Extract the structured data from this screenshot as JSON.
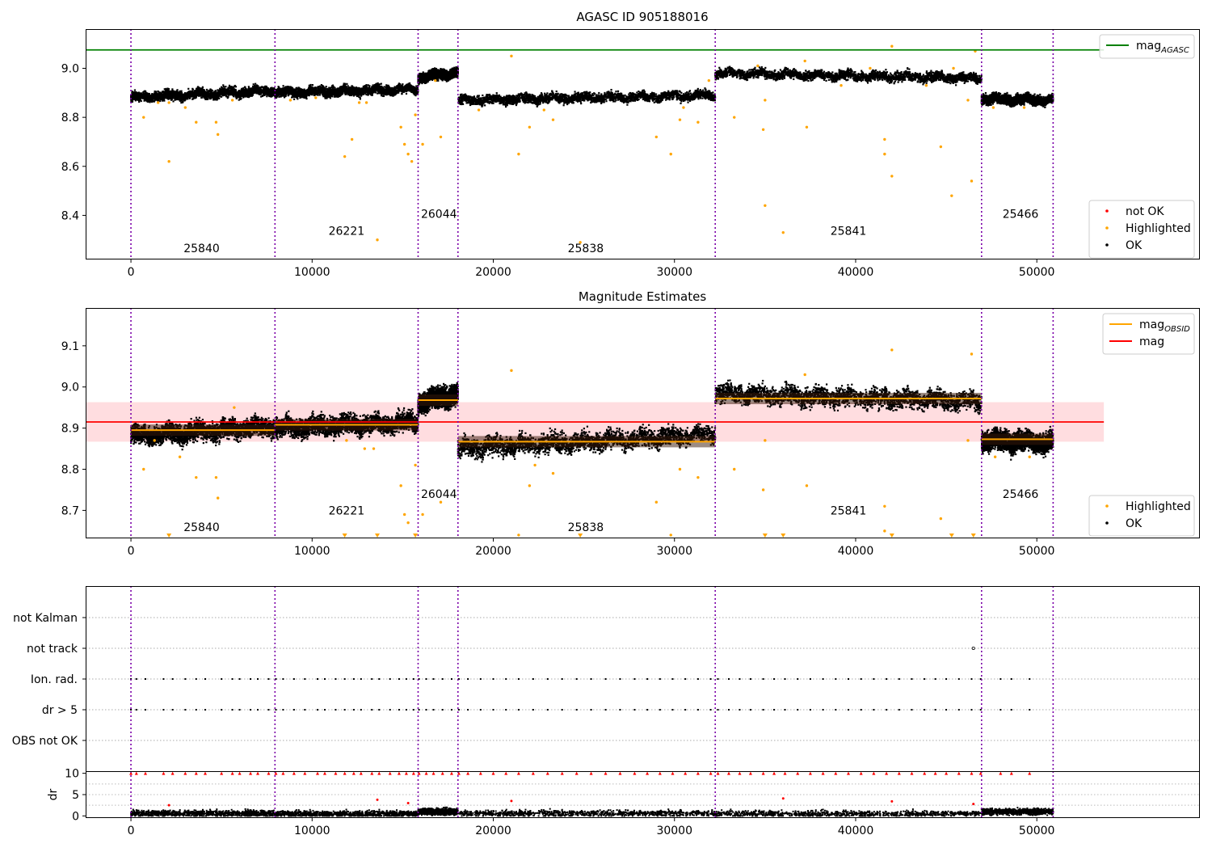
{
  "chart_data": [
    {
      "type": "scatter",
      "title": "AGASC ID 905188016",
      "xlim": [
        -2500,
        59000
      ],
      "ylim": [
        8.22,
        9.16
      ],
      "xticks": [
        0,
        10000,
        20000,
        30000,
        40000,
        50000
      ],
      "yticks": [
        8.4,
        8.6,
        8.8,
        9.0
      ],
      "ytick_labels": [
        "8.4",
        "8.6",
        "8.8",
        "9.0"
      ],
      "obsid_boundaries": [
        0,
        7950,
        15850,
        18050,
        32250,
        46950,
        50900
      ],
      "obsid_labels": [
        {
          "text": "25840",
          "x": 3900,
          "y": 8.25
        },
        {
          "text": "26221",
          "x": 11900,
          "y": 8.32
        },
        {
          "text": "26044",
          "x": 17000,
          "y": 8.39
        },
        {
          "text": "25838",
          "x": 25100,
          "y": 8.25
        },
        {
          "text": "25841",
          "x": 39600,
          "y": 8.32
        },
        {
          "text": "25466",
          "x": 49100,
          "y": 8.39
        }
      ],
      "reference_line": {
        "name": "mag_AGASC",
        "y": 9.075,
        "x_end": 53700,
        "color": "#008000"
      },
      "segments": [
        {
          "x0": 0,
          "x1": 7950,
          "m0": 8.88,
          "m1": 8.91
        },
        {
          "x0": 7950,
          "x1": 15850,
          "m0": 8.9,
          "m1": 8.915
        },
        {
          "x0": 15850,
          "x1": 18050,
          "m0": 8.96,
          "m1": 8.985
        },
        {
          "x0": 18050,
          "x1": 32250,
          "m0": 8.87,
          "m1": 8.89
        },
        {
          "x0": 32250,
          "x1": 46950,
          "m0": 8.98,
          "m1": 8.96
        },
        {
          "x0": 46950,
          "x1": 50900,
          "m0": 8.875,
          "m1": 8.87
        }
      ],
      "highlighted": [
        [
          2100,
          8.62
        ],
        [
          11800,
          8.64
        ],
        [
          12200,
          8.71
        ],
        [
          13600,
          8.3
        ],
        [
          14900,
          8.76
        ],
        [
          15100,
          8.69
        ],
        [
          15300,
          8.65
        ],
        [
          15500,
          8.62
        ],
        [
          15700,
          8.81
        ],
        [
          16100,
          8.69
        ],
        [
          17100,
          8.72
        ],
        [
          21000,
          9.05
        ],
        [
          21400,
          8.65
        ],
        [
          22000,
          8.76
        ],
        [
          23300,
          8.79
        ],
        [
          24800,
          8.29
        ],
        [
          29000,
          8.72
        ],
        [
          29800,
          8.65
        ],
        [
          30300,
          8.79
        ],
        [
          31300,
          8.78
        ],
        [
          33300,
          8.8
        ],
        [
          34900,
          8.75
        ],
        [
          35000,
          8.87
        ],
        [
          35000,
          8.44
        ],
        [
          36000,
          8.33
        ],
        [
          37300,
          8.76
        ],
        [
          39200,
          8.93
        ],
        [
          41600,
          8.71
        ],
        [
          41600,
          8.65
        ],
        [
          42000,
          8.56
        ],
        [
          42000,
          9.09
        ],
        [
          44700,
          8.68
        ],
        [
          45300,
          8.48
        ],
        [
          46400,
          8.54
        ],
        [
          46200,
          8.87
        ],
        [
          700,
          8.8
        ],
        [
          3600,
          8.78
        ],
        [
          4700,
          8.78
        ],
        [
          4800,
          8.73
        ],
        [
          1500,
          8.86
        ],
        [
          2100,
          8.86
        ],
        [
          3000,
          8.84
        ],
        [
          5600,
          8.87
        ],
        [
          8800,
          8.87
        ],
        [
          10200,
          8.88
        ],
        [
          12600,
          8.86
        ],
        [
          13000,
          8.86
        ],
        [
          16800,
          8.95
        ],
        [
          19200,
          8.83
        ],
        [
          22800,
          8.83
        ],
        [
          30500,
          8.84
        ],
        [
          31900,
          8.95
        ],
        [
          34600,
          9.01
        ],
        [
          37200,
          9.03
        ],
        [
          40800,
          9.0
        ],
        [
          43900,
          8.93
        ],
        [
          45400,
          9.0
        ],
        [
          46600,
          9.07
        ],
        [
          47600,
          8.84
        ],
        [
          49300,
          8.84
        ]
      ],
      "legends": [
        {
          "position": "upper right",
          "entries": [
            {
              "label": "mag",
              "subscript": "AGASC",
              "marker": "line",
              "color": "#008000"
            }
          ]
        },
        {
          "position": "lower right",
          "entries": [
            {
              "label": "not OK",
              "marker": "dot",
              "color": "#ff0000"
            },
            {
              "label": "Highlighted",
              "marker": "dot",
              "color": "#ffa500"
            },
            {
              "label": "OK",
              "marker": "dot",
              "color": "#000000"
            }
          ]
        }
      ]
    },
    {
      "type": "scatter",
      "title": "Magnitude Estimates",
      "xlim": [
        -2500,
        59000
      ],
      "ylim": [
        8.632,
        9.192
      ],
      "xticks": [
        0,
        10000,
        20000,
        30000,
        40000,
        50000
      ],
      "yticks": [
        8.7,
        8.8,
        8.9,
        9.0,
        9.1
      ],
      "ytick_labels": [
        "8.7",
        "8.8",
        "8.9",
        "9.0",
        "9.1"
      ],
      "obsid_boundaries": [
        0,
        7950,
        15850,
        18050,
        32250,
        46950,
        50900
      ],
      "obsid_labels": [
        {
          "text": "25840",
          "x": 3900,
          "y": 8.65
        },
        {
          "text": "26221",
          "x": 11900,
          "y": 8.69
        },
        {
          "text": "26044",
          "x": 17000,
          "y": 8.73
        },
        {
          "text": "25838",
          "x": 25100,
          "y": 8.65
        },
        {
          "text": "25841",
          "x": 39600,
          "y": 8.69
        },
        {
          "text": "25466",
          "x": 49100,
          "y": 8.73
        }
      ],
      "mag_line": {
        "name": "mag",
        "y": 8.915,
        "band": [
          8.867,
          8.963
        ],
        "x_end": 53700,
        "color": "#ff0000",
        "band_color": "#ffdde0"
      },
      "obsid_mags": [
        {
          "x0": 0,
          "x1": 7950,
          "y": 8.895
        },
        {
          "x0": 7950,
          "x1": 15850,
          "y": 8.908
        },
        {
          "x0": 15850,
          "x1": 18050,
          "y": 8.968
        },
        {
          "x0": 18050,
          "x1": 32250,
          "y": 8.867
        },
        {
          "x0": 32250,
          "x1": 46950,
          "y": 8.972
        },
        {
          "x0": 46950,
          "x1": 50900,
          "y": 8.873
        }
      ],
      "segments": [
        {
          "x0": 0,
          "x1": 7950,
          "m0": 8.88,
          "m1": 8.905
        },
        {
          "x0": 7950,
          "x1": 15850,
          "m0": 8.9,
          "m1": 8.915
        },
        {
          "x0": 15850,
          "x1": 18050,
          "m0": 8.96,
          "m1": 8.985
        },
        {
          "x0": 18050,
          "x1": 32250,
          "m0": 8.85,
          "m1": 8.885
        },
        {
          "x0": 32250,
          "x1": 46950,
          "m0": 8.985,
          "m1": 8.965
        },
        {
          "x0": 46950,
          "x1": 50900,
          "m0": 8.87,
          "m1": 8.865
        }
      ],
      "highlighted": [
        [
          700,
          8.8
        ],
        [
          1300,
          8.87
        ],
        [
          2700,
          8.83
        ],
        [
          3600,
          8.78
        ],
        [
          4700,
          8.78
        ],
        [
          4800,
          8.73
        ],
        [
          11900,
          8.87
        ],
        [
          12900,
          8.85
        ],
        [
          13400,
          8.85
        ],
        [
          14900,
          8.76
        ],
        [
          15100,
          8.69
        ],
        [
          15300,
          8.67
        ],
        [
          15700,
          8.81
        ],
        [
          16100,
          8.69
        ],
        [
          17100,
          8.72
        ],
        [
          21000,
          9.04
        ],
        [
          21400,
          8.64
        ],
        [
          22000,
          8.76
        ],
        [
          22300,
          8.81
        ],
        [
          23300,
          8.79
        ],
        [
          29000,
          8.72
        ],
        [
          29800,
          8.64
        ],
        [
          30300,
          8.8
        ],
        [
          31300,
          8.78
        ],
        [
          33300,
          8.8
        ],
        [
          34900,
          8.75
        ],
        [
          35000,
          8.87
        ],
        [
          37300,
          8.76
        ],
        [
          41600,
          8.71
        ],
        [
          41600,
          8.65
        ],
        [
          42000,
          9.09
        ],
        [
          44700,
          8.68
        ],
        [
          46400,
          9.08
        ],
        [
          46200,
          8.87
        ],
        [
          47700,
          8.83
        ],
        [
          49600,
          8.83
        ],
        [
          5700,
          8.95
        ],
        [
          37200,
          9.03
        ]
      ],
      "low_markers": [
        2100,
        11800,
        13600,
        15700,
        24800,
        35000,
        36000,
        42000,
        45300,
        46500
      ],
      "legends": [
        {
          "position": "upper right",
          "entries": [
            {
              "label": "mag",
              "subscript": "OBSID",
              "marker": "line",
              "color": "#ffa500"
            },
            {
              "label": "mag",
              "marker": "line",
              "color": "#ff0000"
            }
          ]
        },
        {
          "position": "lower right",
          "entries": [
            {
              "label": "Highlighted",
              "marker": "dot",
              "color": "#ffa500"
            },
            {
              "label": "OK",
              "marker": "dot",
              "color": "#000000"
            }
          ]
        }
      ]
    },
    {
      "type": "scatter",
      "xlim": [
        -2500,
        59000
      ],
      "categories": [
        "not Kalman",
        "not track",
        "Ion. rad.",
        "dr > 5",
        "OBS not OK"
      ],
      "flag_times": [
        0,
        300,
        800,
        1800,
        2300,
        3000,
        3600,
        4100,
        5000,
        5600,
        6000,
        6600,
        7000,
        7600,
        8000,
        8400,
        9000,
        9600,
        10300,
        10700,
        11300,
        11800,
        12300,
        12700,
        13300,
        13700,
        14300,
        14800,
        15200,
        15600,
        15900,
        16300,
        16700,
        17200,
        17700,
        18100,
        18600,
        19300,
        20000,
        20700,
        21400,
        22200,
        23000,
        23800,
        24600,
        25400,
        26200,
        27000,
        27800,
        28500,
        29200,
        29900,
        30600,
        31300,
        32000,
        32400,
        33000,
        33600,
        34200,
        34900,
        35500,
        36100,
        36800,
        37500,
        38200,
        38900,
        39600,
        40300,
        41000,
        41700,
        42400,
        43100,
        43800,
        44400,
        45000,
        45700,
        46400,
        46900,
        48000,
        48600,
        49600
      ],
      "not_track_time": 46500,
      "gridlines": "dotted",
      "xticks": [
        0,
        10000,
        20000,
        30000,
        40000,
        50000
      ],
      "obsid_boundaries": [
        0,
        7950,
        15850,
        18050,
        32250,
        46950,
        50900
      ]
    },
    {
      "type": "scatter",
      "ylabel": "dr",
      "xlim": [
        -2500,
        59000
      ],
      "ylim": [
        -0.5,
        10.5
      ],
      "yticks": [
        0,
        5,
        10
      ],
      "ytick_labels": [
        "0",
        "5",
        "10"
      ],
      "xticks": [
        0,
        10000,
        20000,
        30000,
        40000,
        50000
      ],
      "xtick_labels": [
        "0",
        "10000",
        "20000",
        "30000",
        "40000",
        "50000"
      ],
      "obsid_boundaries": [
        0,
        7950,
        15850,
        18050,
        32250,
        46950,
        50900
      ],
      "capped_value": 10,
      "outliers": [
        [
          13600,
          3.8
        ],
        [
          15300,
          3
        ],
        [
          21000,
          3.5
        ],
        [
          36000,
          4.1
        ],
        [
          42000,
          3.4
        ],
        [
          46500,
          2.8
        ],
        [
          2100,
          2.5
        ]
      ]
    }
  ]
}
